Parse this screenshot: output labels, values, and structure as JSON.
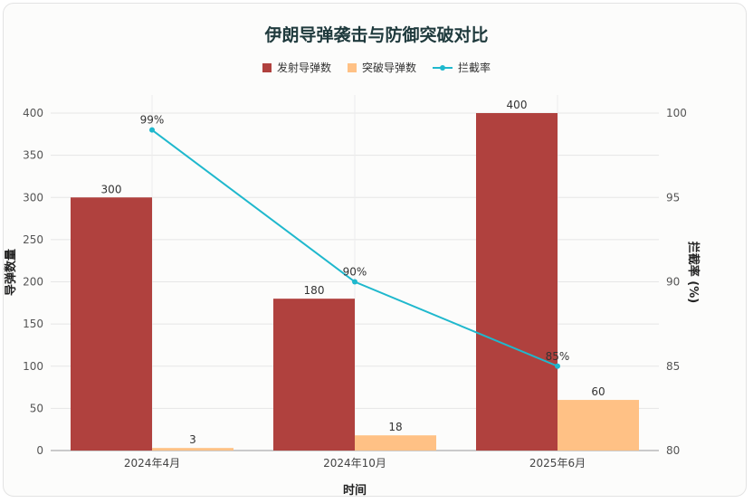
{
  "chart_data": {
    "type": "bar",
    "title": "伊朗导弹袭击与防御突破对比",
    "categories": [
      "2024年4月",
      "2024年10月",
      "2025年6月"
    ],
    "series": [
      {
        "name": "发射导弹数",
        "type": "bar",
        "values": [
          300,
          180,
          400
        ],
        "color": "#b0413e",
        "axis": "left"
      },
      {
        "name": "突破导弹数",
        "type": "bar",
        "values": [
          3,
          18,
          60
        ],
        "color": "#ffc185",
        "axis": "left"
      },
      {
        "name": "拦截率",
        "type": "line",
        "values": [
          99,
          90,
          85
        ],
        "value_labels": [
          "99%",
          "90%",
          "85%"
        ],
        "color": "#1fb8cd",
        "axis": "right"
      }
    ],
    "xlabel": "时间",
    "ylabel": "导弹数量",
    "y2label": "拦截率 (%)",
    "ylim": [
      0,
      400
    ],
    "y2lim": [
      80,
      100
    ],
    "yticks": [
      0,
      50,
      100,
      150,
      200,
      250,
      300,
      350,
      400
    ],
    "y2ticks": [
      80,
      85,
      90,
      95,
      100
    ],
    "grid": true,
    "legend_position": "top-center"
  }
}
